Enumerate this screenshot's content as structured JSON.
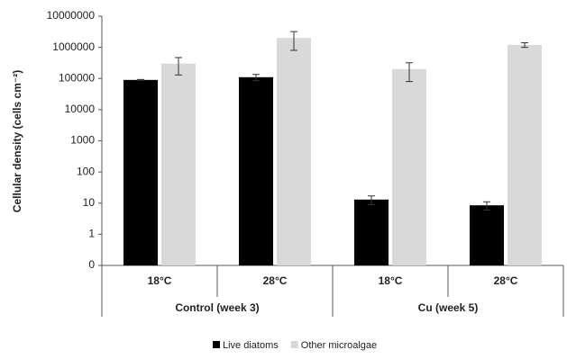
{
  "chart_data": {
    "type": "bar",
    "y_label": "Cellular density (cells  cm⁻²)",
    "log_scale": true,
    "ylim": [
      0.1,
      10000000
    ],
    "yticks": [
      {
        "value": 0.1,
        "label": "0"
      },
      1,
      10,
      100,
      1000,
      10000,
      100000,
      1000000,
      10000000
    ],
    "categories": [
      "18°C",
      "28°C",
      "18°C",
      "28°C"
    ],
    "groups": [
      "Control (week 3)",
      "Cu (week 5)"
    ],
    "legend": "bottom",
    "series": [
      {
        "name": "Live diatoms",
        "color": "#000000",
        "values": [
          90000,
          110000,
          13,
          8.5
        ],
        "errors": [
          3000,
          25000,
          4,
          2.5
        ]
      },
      {
        "name": "Other microalgae",
        "color": "#d9d9d9",
        "values": [
          300000,
          2000000,
          200000,
          1200000
        ],
        "errors": [
          170000,
          1200000,
          120000,
          200000
        ]
      }
    ]
  }
}
